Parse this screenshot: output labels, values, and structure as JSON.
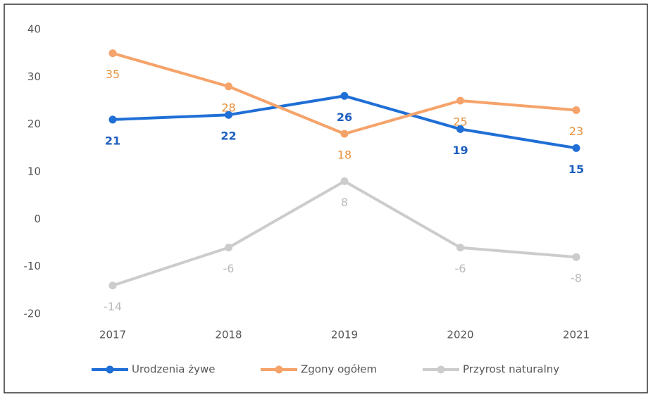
{
  "chart_data": {
    "type": "line",
    "categories": [
      "2017",
      "2018",
      "2019",
      "2020",
      "2021"
    ],
    "series": [
      {
        "name": "Urodzenia żywe",
        "color": "#1f6fd6",
        "label_color": "#1f5fc0",
        "values": [
          21,
          22,
          26,
          19,
          15
        ]
      },
      {
        "name": "Zgony ogółem",
        "color": "#f5a36a",
        "label_color": "#e8913f",
        "values": [
          35,
          28,
          18,
          25,
          23
        ]
      },
      {
        "name": "Przyrost naturalny",
        "color": "#cccccc",
        "label_color": "#b9b9b9",
        "values": [
          -14,
          -6,
          8,
          -6,
          -8
        ]
      }
    ],
    "ylim": [
      -20,
      40
    ],
    "yticks": [
      -20,
      -10,
      0,
      10,
      20,
      30,
      40
    ],
    "grid": false,
    "legend": "bottom"
  }
}
